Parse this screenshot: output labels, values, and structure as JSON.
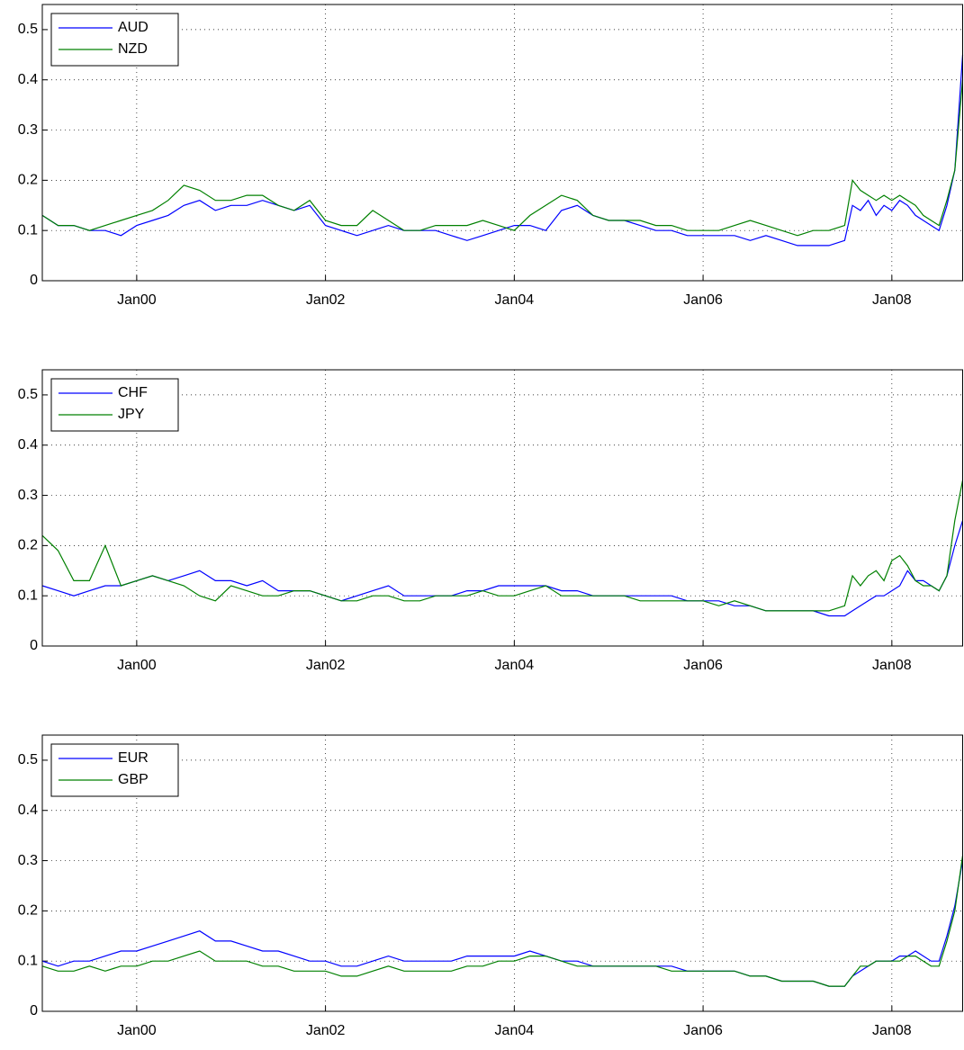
{
  "chart_data": [
    {
      "type": "line",
      "grid": true,
      "legend": "upper left",
      "x": [
        "1999-01",
        "1999-03",
        "1999-05",
        "1999-07",
        "1999-09",
        "1999-11",
        "2000-01",
        "2000-03",
        "2000-05",
        "2000-07",
        "2000-09",
        "2000-11",
        "2001-01",
        "2001-03",
        "2001-05",
        "2001-07",
        "2001-09",
        "2001-11",
        "2002-01",
        "2002-03",
        "2002-05",
        "2002-07",
        "2002-09",
        "2002-11",
        "2003-01",
        "2003-03",
        "2003-05",
        "2003-07",
        "2003-09",
        "2003-11",
        "2004-01",
        "2004-03",
        "2004-05",
        "2004-07",
        "2004-09",
        "2004-11",
        "2005-01",
        "2005-03",
        "2005-05",
        "2005-07",
        "2005-09",
        "2005-11",
        "2006-01",
        "2006-03",
        "2006-05",
        "2006-07",
        "2006-09",
        "2006-11",
        "2007-01",
        "2007-03",
        "2007-05",
        "2007-07",
        "2007-08",
        "2007-09",
        "2007-10",
        "2007-11",
        "2007-12",
        "2008-01",
        "2008-02",
        "2008-03",
        "2008-04",
        "2008-05",
        "2008-06",
        "2008-07",
        "2008-08",
        "2008-09",
        "2008-10"
      ],
      "xlim": [
        "1999-01",
        "2008-10"
      ],
      "xticks": [
        {
          "value": "2000-01",
          "label": "Jan00"
        },
        {
          "value": "2002-01",
          "label": "Jan02"
        },
        {
          "value": "2004-01",
          "label": "Jan04"
        },
        {
          "value": "2006-01",
          "label": "Jan06"
        },
        {
          "value": "2008-01",
          "label": "Jan08"
        }
      ],
      "ylim": [
        0,
        0.55
      ],
      "yticks": [
        0,
        0.1,
        0.2,
        0.3,
        0.4,
        0.5
      ],
      "series": [
        {
          "name": "AUD",
          "color": "#0000ff",
          "values": [
            0.13,
            0.11,
            0.11,
            0.1,
            0.1,
            0.09,
            0.11,
            0.12,
            0.13,
            0.15,
            0.16,
            0.14,
            0.15,
            0.15,
            0.16,
            0.15,
            0.14,
            0.15,
            0.11,
            0.1,
            0.09,
            0.1,
            0.11,
            0.1,
            0.1,
            0.1,
            0.09,
            0.08,
            0.09,
            0.1,
            0.11,
            0.11,
            0.1,
            0.14,
            0.15,
            0.13,
            0.12,
            0.12,
            0.11,
            0.1,
            0.1,
            0.09,
            0.09,
            0.09,
            0.09,
            0.08,
            0.09,
            0.08,
            0.07,
            0.07,
            0.07,
            0.08,
            0.15,
            0.14,
            0.16,
            0.13,
            0.15,
            0.14,
            0.16,
            0.15,
            0.13,
            0.12,
            0.11,
            0.1,
            0.15,
            0.22,
            0.45
          ]
        },
        {
          "name": "NZD",
          "color": "#008000",
          "values": [
            0.13,
            0.11,
            0.11,
            0.1,
            0.11,
            0.12,
            0.13,
            0.14,
            0.16,
            0.19,
            0.18,
            0.16,
            0.16,
            0.17,
            0.17,
            0.15,
            0.14,
            0.16,
            0.12,
            0.11,
            0.11,
            0.14,
            0.12,
            0.1,
            0.1,
            0.11,
            0.11,
            0.11,
            0.12,
            0.11,
            0.1,
            0.13,
            0.15,
            0.17,
            0.16,
            0.13,
            0.12,
            0.12,
            0.12,
            0.11,
            0.11,
            0.1,
            0.1,
            0.1,
            0.11,
            0.12,
            0.11,
            0.1,
            0.09,
            0.1,
            0.1,
            0.11,
            0.2,
            0.18,
            0.17,
            0.16,
            0.17,
            0.16,
            0.17,
            0.16,
            0.15,
            0.13,
            0.12,
            0.11,
            0.16,
            0.22,
            0.4
          ]
        }
      ]
    },
    {
      "type": "line",
      "grid": true,
      "legend": "upper left",
      "x": [
        "1999-01",
        "1999-03",
        "1999-05",
        "1999-07",
        "1999-09",
        "1999-11",
        "2000-01",
        "2000-03",
        "2000-05",
        "2000-07",
        "2000-09",
        "2000-11",
        "2001-01",
        "2001-03",
        "2001-05",
        "2001-07",
        "2001-09",
        "2001-11",
        "2002-01",
        "2002-03",
        "2002-05",
        "2002-07",
        "2002-09",
        "2002-11",
        "2003-01",
        "2003-03",
        "2003-05",
        "2003-07",
        "2003-09",
        "2003-11",
        "2004-01",
        "2004-03",
        "2004-05",
        "2004-07",
        "2004-09",
        "2004-11",
        "2005-01",
        "2005-03",
        "2005-05",
        "2005-07",
        "2005-09",
        "2005-11",
        "2006-01",
        "2006-03",
        "2006-05",
        "2006-07",
        "2006-09",
        "2006-11",
        "2007-01",
        "2007-03",
        "2007-05",
        "2007-07",
        "2007-08",
        "2007-09",
        "2007-10",
        "2007-11",
        "2007-12",
        "2008-01",
        "2008-02",
        "2008-03",
        "2008-04",
        "2008-05",
        "2008-06",
        "2008-07",
        "2008-08",
        "2008-09",
        "2008-10"
      ],
      "xlim": [
        "1999-01",
        "2008-10"
      ],
      "xticks": [
        {
          "value": "2000-01",
          "label": "Jan00"
        },
        {
          "value": "2002-01",
          "label": "Jan02"
        },
        {
          "value": "2004-01",
          "label": "Jan04"
        },
        {
          "value": "2006-01",
          "label": "Jan06"
        },
        {
          "value": "2008-01",
          "label": "Jan08"
        }
      ],
      "ylim": [
        0,
        0.55
      ],
      "yticks": [
        0,
        0.1,
        0.2,
        0.3,
        0.4,
        0.5
      ],
      "series": [
        {
          "name": "CHF",
          "color": "#0000ff",
          "values": [
            0.12,
            0.11,
            0.1,
            0.11,
            0.12,
            0.12,
            0.13,
            0.14,
            0.13,
            0.14,
            0.15,
            0.13,
            0.13,
            0.12,
            0.13,
            0.11,
            0.11,
            0.11,
            0.1,
            0.09,
            0.1,
            0.11,
            0.12,
            0.1,
            0.1,
            0.1,
            0.1,
            0.11,
            0.11,
            0.12,
            0.12,
            0.12,
            0.12,
            0.11,
            0.11,
            0.1,
            0.1,
            0.1,
            0.1,
            0.1,
            0.1,
            0.09,
            0.09,
            0.09,
            0.08,
            0.08,
            0.07,
            0.07,
            0.07,
            0.07,
            0.06,
            0.06,
            0.07,
            0.08,
            0.09,
            0.1,
            0.1,
            0.11,
            0.12,
            0.15,
            0.13,
            0.13,
            0.12,
            0.11,
            0.14,
            0.2,
            0.25
          ]
        },
        {
          "name": "JPY",
          "color": "#008000",
          "values": [
            0.22,
            0.19,
            0.13,
            0.13,
            0.2,
            0.12,
            0.13,
            0.14,
            0.13,
            0.12,
            0.1,
            0.09,
            0.12,
            0.11,
            0.1,
            0.1,
            0.11,
            0.11,
            0.1,
            0.09,
            0.09,
            0.1,
            0.1,
            0.09,
            0.09,
            0.1,
            0.1,
            0.1,
            0.11,
            0.1,
            0.1,
            0.11,
            0.12,
            0.1,
            0.1,
            0.1,
            0.1,
            0.1,
            0.09,
            0.09,
            0.09,
            0.09,
            0.09,
            0.08,
            0.09,
            0.08,
            0.07,
            0.07,
            0.07,
            0.07,
            0.07,
            0.08,
            0.14,
            0.12,
            0.14,
            0.15,
            0.13,
            0.17,
            0.18,
            0.16,
            0.13,
            0.12,
            0.12,
            0.11,
            0.14,
            0.25,
            0.33
          ]
        }
      ]
    },
    {
      "type": "line",
      "grid": true,
      "legend": "upper left",
      "x": [
        "1999-01",
        "1999-03",
        "1999-05",
        "1999-07",
        "1999-09",
        "1999-11",
        "2000-01",
        "2000-03",
        "2000-05",
        "2000-07",
        "2000-09",
        "2000-11",
        "2001-01",
        "2001-03",
        "2001-05",
        "2001-07",
        "2001-09",
        "2001-11",
        "2002-01",
        "2002-03",
        "2002-05",
        "2002-07",
        "2002-09",
        "2002-11",
        "2003-01",
        "2003-03",
        "2003-05",
        "2003-07",
        "2003-09",
        "2003-11",
        "2004-01",
        "2004-03",
        "2004-05",
        "2004-07",
        "2004-09",
        "2004-11",
        "2005-01",
        "2005-03",
        "2005-05",
        "2005-07",
        "2005-09",
        "2005-11",
        "2006-01",
        "2006-03",
        "2006-05",
        "2006-07",
        "2006-09",
        "2006-11",
        "2007-01",
        "2007-03",
        "2007-05",
        "2007-07",
        "2007-08",
        "2007-09",
        "2007-10",
        "2007-11",
        "2007-12",
        "2008-01",
        "2008-02",
        "2008-03",
        "2008-04",
        "2008-05",
        "2008-06",
        "2008-07",
        "2008-08",
        "2008-09",
        "2008-10"
      ],
      "xlim": [
        "1999-01",
        "2008-10"
      ],
      "xticks": [
        {
          "value": "2000-01",
          "label": "Jan00"
        },
        {
          "value": "2002-01",
          "label": "Jan02"
        },
        {
          "value": "2004-01",
          "label": "Jan04"
        },
        {
          "value": "2006-01",
          "label": "Jan06"
        },
        {
          "value": "2008-01",
          "label": "Jan08"
        }
      ],
      "ylim": [
        0,
        0.55
      ],
      "yticks": [
        0,
        0.1,
        0.2,
        0.3,
        0.4,
        0.5
      ],
      "series": [
        {
          "name": "EUR",
          "color": "#0000ff",
          "values": [
            0.1,
            0.09,
            0.1,
            0.1,
            0.11,
            0.12,
            0.12,
            0.13,
            0.14,
            0.15,
            0.16,
            0.14,
            0.14,
            0.13,
            0.12,
            0.12,
            0.11,
            0.1,
            0.1,
            0.09,
            0.09,
            0.1,
            0.11,
            0.1,
            0.1,
            0.1,
            0.1,
            0.11,
            0.11,
            0.11,
            0.11,
            0.12,
            0.11,
            0.1,
            0.1,
            0.09,
            0.09,
            0.09,
            0.09,
            0.09,
            0.09,
            0.08,
            0.08,
            0.08,
            0.08,
            0.07,
            0.07,
            0.06,
            0.06,
            0.06,
            0.05,
            0.05,
            0.07,
            0.08,
            0.09,
            0.1,
            0.1,
            0.1,
            0.11,
            0.11,
            0.12,
            0.11,
            0.1,
            0.1,
            0.15,
            0.21,
            0.3
          ]
        },
        {
          "name": "GBP",
          "color": "#008000",
          "values": [
            0.09,
            0.08,
            0.08,
            0.09,
            0.08,
            0.09,
            0.09,
            0.1,
            0.1,
            0.11,
            0.12,
            0.1,
            0.1,
            0.1,
            0.09,
            0.09,
            0.08,
            0.08,
            0.08,
            0.07,
            0.07,
            0.08,
            0.09,
            0.08,
            0.08,
            0.08,
            0.08,
            0.09,
            0.09,
            0.1,
            0.1,
            0.11,
            0.11,
            0.1,
            0.09,
            0.09,
            0.09,
            0.09,
            0.09,
            0.09,
            0.08,
            0.08,
            0.08,
            0.08,
            0.08,
            0.07,
            0.07,
            0.06,
            0.06,
            0.06,
            0.05,
            0.05,
            0.07,
            0.09,
            0.09,
            0.1,
            0.1,
            0.1,
            0.1,
            0.11,
            0.11,
            0.1,
            0.09,
            0.09,
            0.14,
            0.2,
            0.31
          ]
        }
      ]
    }
  ]
}
